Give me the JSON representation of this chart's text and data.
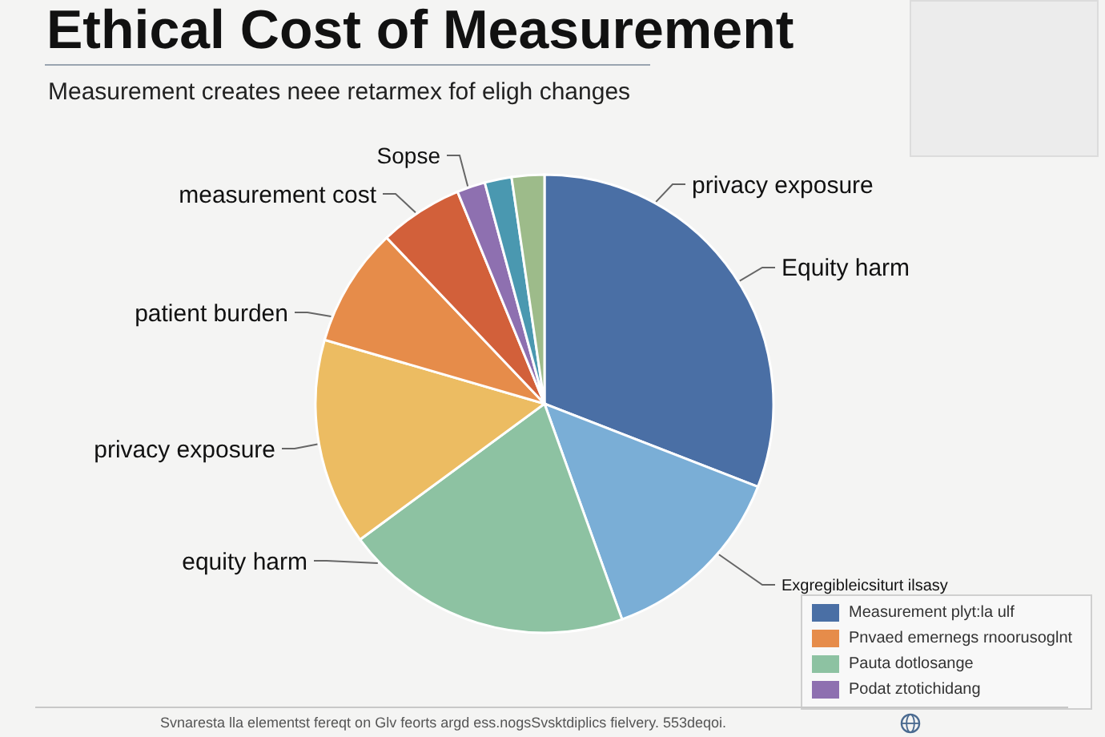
{
  "chart_data": {
    "type": "pie",
    "title": "Ethical Cost of Measurement",
    "subtitle": "Measurement creates neee retarmex fof eligh changes",
    "categories": [
      "privacy exposure",
      "Exgregibleicsiturt ilsasy",
      "equity harm",
      "privacy exposure",
      "patient burden",
      "measurement cost",
      "Sopse",
      null,
      null
    ],
    "values": [
      30.9,
      13.6,
      20.4,
      14.6,
      8.4,
      5.9,
      2.0,
      1.9,
      2.3
    ],
    "colors": [
      "#4a6fa5",
      "#7aaed6",
      "#8dc2a2",
      "#ecbc62",
      "#e68c4a",
      "#d2603a",
      "#8e70b0",
      "#4a98b0",
      "#9dbb8a"
    ],
    "annotations": [
      "Equity harm",
      "Measurement plyt:la ulf",
      "Pnvaed emernegs rnoorusoglnt",
      "Pauta dotlosange",
      "Podat ztotichidang",
      "Svnaresta lla elementst fereqt on Glv feorts argd ess.nogsSvsktdiplics fielvery. 553deqoi."
    ]
  }
}
